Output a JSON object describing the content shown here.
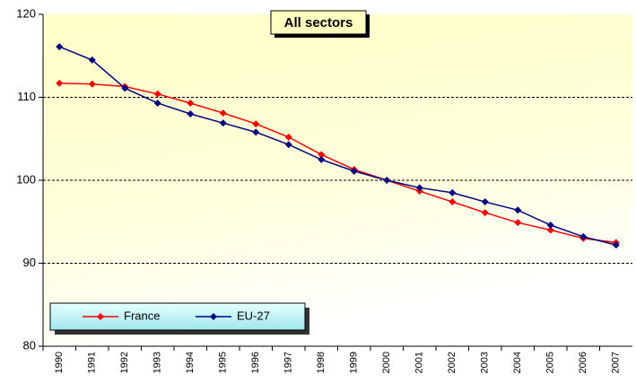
{
  "chart_data": {
    "type": "line",
    "title": "All sectors",
    "categories": [
      "1990",
      "1991",
      "1992",
      "1993",
      "1994",
      "1995",
      "1996",
      "1997",
      "1998",
      "1999",
      "2000",
      "2001",
      "2002",
      "2003",
      "2004",
      "2005",
      "2006",
      "2007"
    ],
    "series": [
      {
        "name": "France",
        "color": "#ff0000",
        "values": [
          111.7,
          111.6,
          111.3,
          110.4,
          109.3,
          108.1,
          106.8,
          105.2,
          103.1,
          101.3,
          100,
          98.7,
          97.4,
          96.1,
          94.9,
          94.0,
          93.0,
          92.5
        ]
      },
      {
        "name": "EU-27",
        "color": "#000080",
        "values": [
          116.1,
          114.5,
          111.1,
          109.3,
          108.0,
          106.9,
          105.8,
          104.3,
          102.5,
          101.1,
          100,
          99.1,
          98.5,
          97.4,
          96.4,
          94.6,
          93.2,
          92.2
        ]
      }
    ],
    "ylim": [
      80,
      120
    ],
    "yticks": [
      80,
      90,
      100,
      110,
      120
    ],
    "grid": true
  }
}
